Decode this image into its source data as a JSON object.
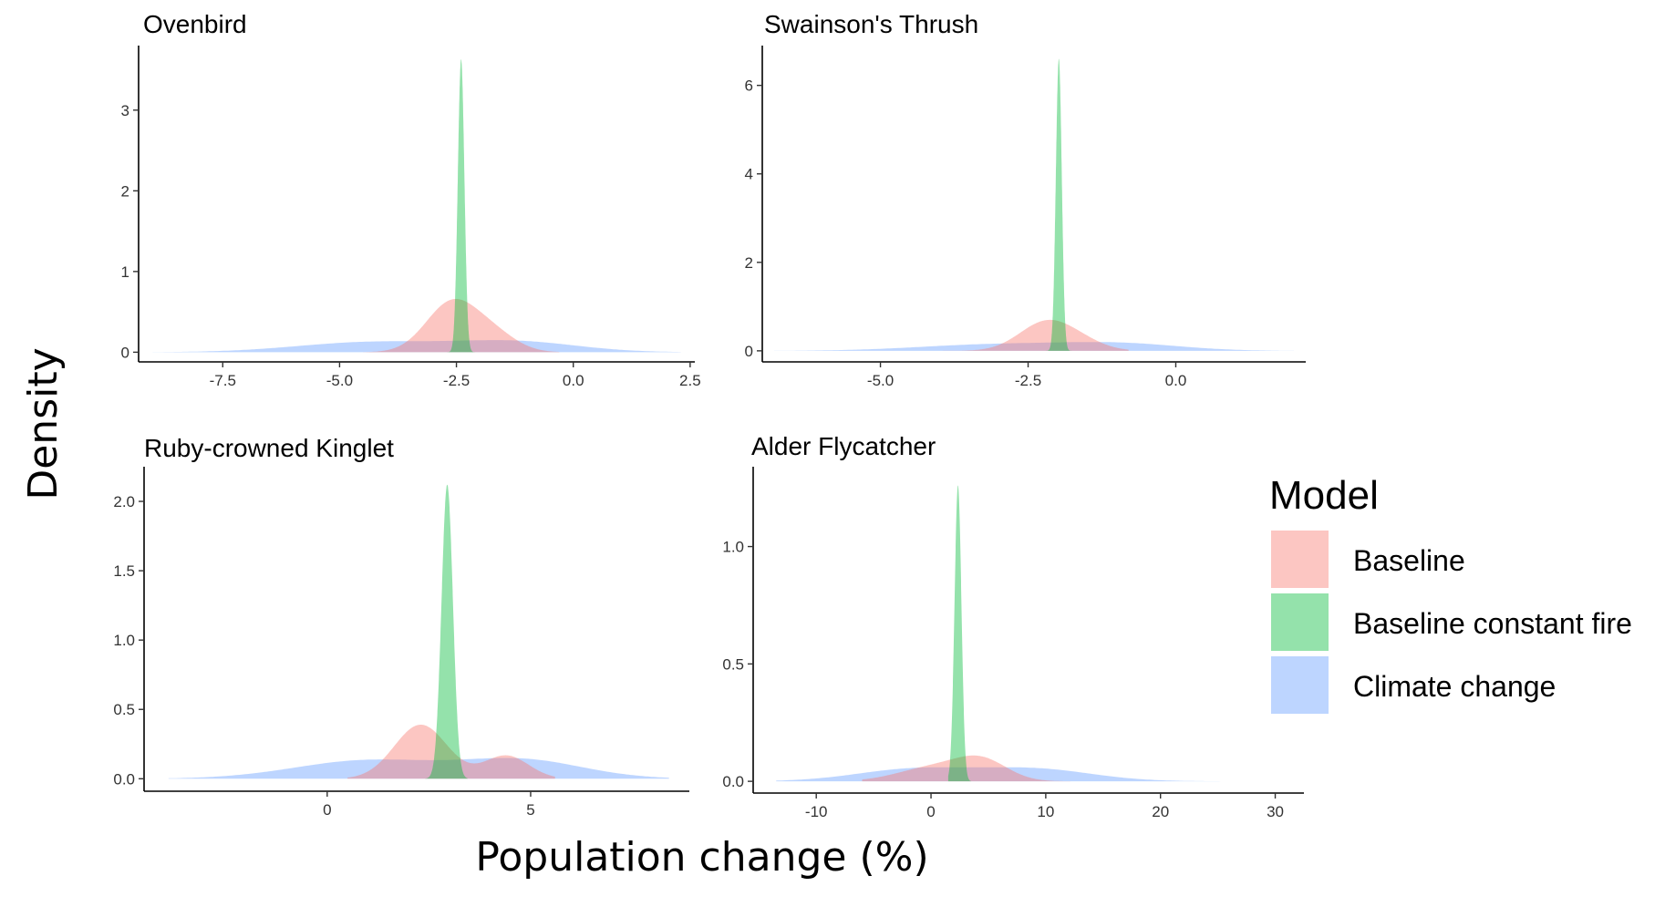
{
  "figure": {
    "xlabel": "Population change (%)",
    "ylabel": "Density"
  },
  "legend": {
    "title": "Model",
    "placement": "right",
    "items": [
      {
        "label": "Baseline",
        "color": "#f8766d"
      },
      {
        "label": "Baseline constant fire",
        "color": "#00ba38"
      },
      {
        "label": "Climate change",
        "color": "#619cff"
      }
    ]
  },
  "chart_data": [
    {
      "type": "area",
      "title": "Ovenbird",
      "xlim": [
        -9.3,
        2.6
      ],
      "ylim": [
        -0.12,
        3.8
      ],
      "xticks": [
        {
          "v": -7.5,
          "label": "-7.5"
        },
        {
          "v": -5.0,
          "label": "-5.0"
        },
        {
          "v": -2.5,
          "label": "-2.5"
        },
        {
          "v": 0.0,
          "label": "0.0"
        },
        {
          "v": 2.5,
          "label": "2.5"
        }
      ],
      "yticks": [
        {
          "v": 0,
          "label": "0"
        },
        {
          "v": 1,
          "label": "1"
        },
        {
          "v": 2,
          "label": "2"
        },
        {
          "v": 3,
          "label": "3"
        }
      ],
      "series": [
        {
          "name": "Climate change",
          "range": [
            -9.0,
            2.3
          ],
          "components": [
            {
              "w": 0.5,
              "mu": -4.3,
              "sd": 1.6
            },
            {
              "w": 0.5,
              "mu": -1.2,
              "sd": 1.3
            }
          ],
          "peak": 0.15
        },
        {
          "name": "Baseline",
          "range": [
            -4.5,
            -0.3
          ],
          "components": [
            {
              "w": 0.75,
              "mu": -2.6,
              "sd": 0.55
            },
            {
              "w": 0.25,
              "mu": -1.7,
              "sd": 0.5
            }
          ],
          "peak": 0.66
        },
        {
          "name": "Baseline constant fire",
          "range": [
            -2.75,
            -2.05
          ],
          "components": [
            {
              "w": 1,
              "mu": -2.4,
              "sd": 0.07
            }
          ],
          "peak": 3.63
        }
      ]
    },
    {
      "type": "area",
      "title": "Swainson's Thrush",
      "xlim": [
        -7.0,
        2.2
      ],
      "ylim": [
        -0.25,
        6.9
      ],
      "xticks": [
        {
          "v": -5.0,
          "label": "-5.0"
        },
        {
          "v": -2.5,
          "label": "-2.5"
        },
        {
          "v": 0.0,
          "label": "0.0"
        }
      ],
      "yticks": [
        {
          "v": 0,
          "label": "0"
        },
        {
          "v": 2,
          "label": "2"
        },
        {
          "v": 4,
          "label": "4"
        },
        {
          "v": 6,
          "label": "6"
        }
      ],
      "series": [
        {
          "name": "Climate change",
          "range": [
            -6.8,
            2.0
          ],
          "components": [
            {
              "w": 0.5,
              "mu": -3.0,
              "sd": 1.3
            },
            {
              "w": 0.5,
              "mu": -0.9,
              "sd": 1.0
            }
          ],
          "peak": 0.2
        },
        {
          "name": "Baseline",
          "range": [
            -4.2,
            -0.8
          ],
          "components": [
            {
              "w": 0.8,
              "mu": -2.2,
              "sd": 0.45
            },
            {
              "w": 0.2,
              "mu": -1.6,
              "sd": 0.4
            }
          ],
          "peak": 0.7
        },
        {
          "name": "Baseline constant fire",
          "range": [
            -2.25,
            -1.75
          ],
          "components": [
            {
              "w": 1,
              "mu": -1.98,
              "sd": 0.05
            }
          ],
          "peak": 6.6
        }
      ]
    },
    {
      "type": "area",
      "title": "Ruby-crowned Kinglet",
      "xlim": [
        -4.5,
        8.9
      ],
      "ylim": [
        -0.09,
        2.25
      ],
      "xticks": [
        {
          "v": 0,
          "label": "0"
        },
        {
          "v": 5,
          "label": "5"
        }
      ],
      "yticks": [
        {
          "v": 0.0,
          "label": "0.0"
        },
        {
          "v": 0.5,
          "label": "0.5"
        },
        {
          "v": 1.0,
          "label": "1.0"
        },
        {
          "v": 1.5,
          "label": "1.5"
        },
        {
          "v": 2.0,
          "label": "2.0"
        }
      ],
      "series": [
        {
          "name": "Climate change",
          "range": [
            -3.9,
            8.4
          ],
          "components": [
            {
              "w": 0.5,
              "mu": 1.0,
              "sd": 1.8
            },
            {
              "w": 0.5,
              "mu": 4.8,
              "sd": 1.5
            }
          ],
          "peak": 0.15
        },
        {
          "name": "Baseline",
          "range": [
            0.5,
            5.6
          ],
          "components": [
            {
              "w": 0.7,
              "mu": 2.3,
              "sd": 0.65
            },
            {
              "w": 0.3,
              "mu": 4.4,
              "sd": 0.55
            }
          ],
          "peak": 0.39
        },
        {
          "name": "Baseline constant fire",
          "range": [
            2.35,
            3.45
          ],
          "components": [
            {
              "w": 1,
              "mu": 2.95,
              "sd": 0.14
            }
          ],
          "peak": 2.12
        }
      ]
    },
    {
      "type": "area",
      "title": "Alder Flycatcher",
      "xlim": [
        -15.5,
        32.5
      ],
      "ylim": [
        -0.05,
        1.34
      ],
      "xticks": [
        {
          "v": -10,
          "label": "-10"
        },
        {
          "v": 0,
          "label": "0"
        },
        {
          "v": 10,
          "label": "10"
        },
        {
          "v": 20,
          "label": "20"
        },
        {
          "v": 30,
          "label": "30"
        }
      ],
      "yticks": [
        {
          "v": 0.0,
          "label": "0.0"
        },
        {
          "v": 0.5,
          "label": "0.5"
        },
        {
          "v": 1.0,
          "label": "1.0"
        }
      ],
      "series": [
        {
          "name": "Climate change",
          "range": [
            -13.5,
            30.5
          ],
          "components": [
            {
              "w": 0.5,
              "mu": -1.5,
              "sd": 5.0
            },
            {
              "w": 0.5,
              "mu": 9.0,
              "sd": 5.0
            }
          ],
          "peak": 0.06
        },
        {
          "name": "Baseline",
          "range": [
            -6.0,
            16.0
          ],
          "components": [
            {
              "w": 0.55,
              "mu": 4.5,
              "sd": 2.2
            },
            {
              "w": 0.45,
              "mu": 0.5,
              "sd": 3.2
            }
          ],
          "peak": 0.11
        },
        {
          "name": "Baseline constant fire",
          "range": [
            1.5,
            3.5
          ],
          "components": [
            {
              "w": 1,
              "mu": 2.35,
              "sd": 0.3
            }
          ],
          "peak": 1.26
        }
      ]
    }
  ]
}
